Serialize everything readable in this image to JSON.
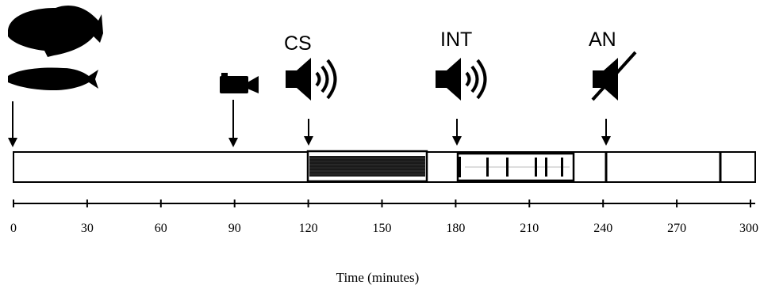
{
  "labels": {
    "cs": "CS",
    "int": "INT",
    "an": "AN"
  },
  "axis": {
    "title": "Time (minutes)",
    "ticks": [
      "0",
      "30",
      "60",
      "90",
      "120",
      "150",
      "180",
      "210",
      "240",
      "270",
      "300"
    ]
  },
  "icons": {
    "fish_large": "fish-silhouette-large-icon",
    "fish_small": "fish-silhouette-small-icon",
    "camera": "video-camera-icon",
    "sound_cs": "speaker-sound-icon",
    "sound_int": "speaker-sound-icon",
    "sound_off": "speaker-muted-icon"
  },
  "colors": {
    "ink": "#000000",
    "background": "#ffffff"
  }
}
